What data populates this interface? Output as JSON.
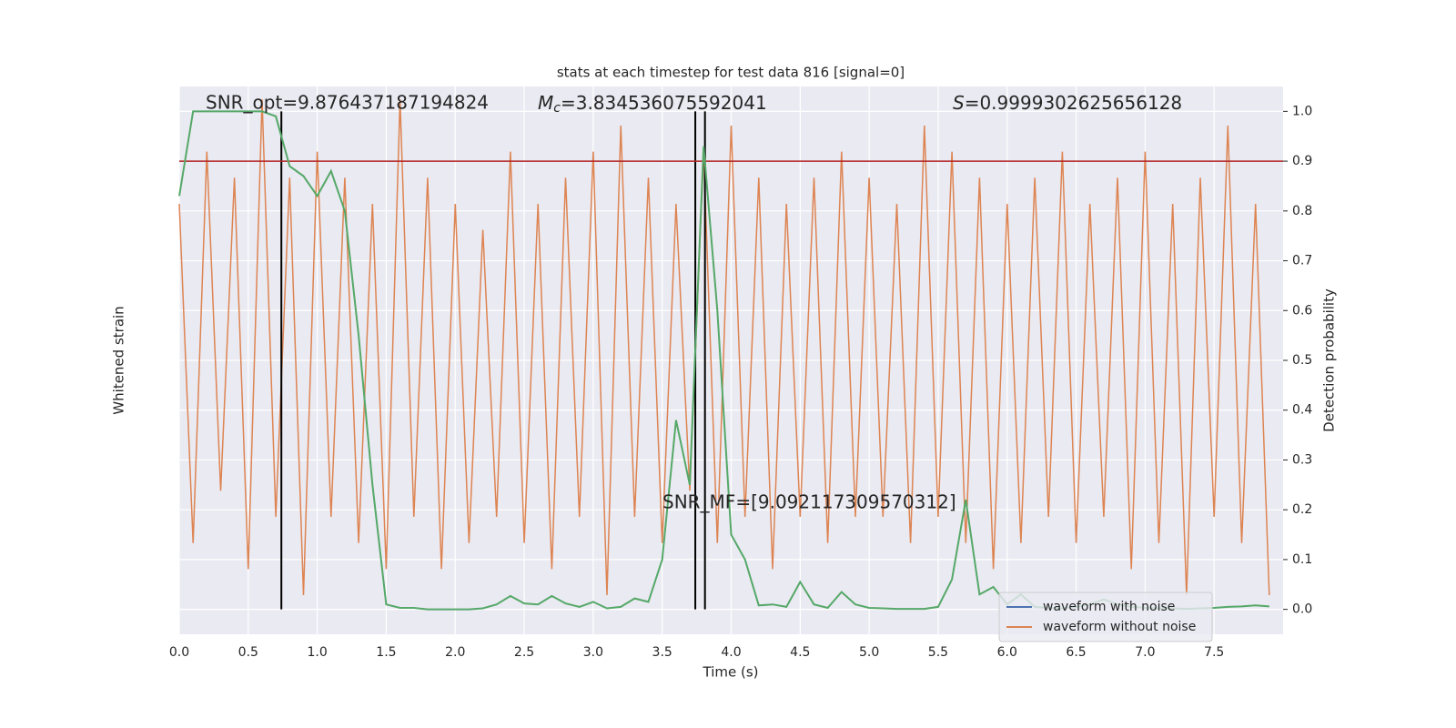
{
  "chart_data": {
    "type": "line",
    "title": "stats at each timestep for test data 816 [signal=0]",
    "xlabel": "Time (s)",
    "ylabel": "Whitened strain",
    "y2label": "Detection probability",
    "xlim": [
      0,
      8
    ],
    "xticks": [
      {
        "value": 0,
        "label": "0.0"
      },
      0.5,
      {
        "value": 1,
        "label": "1.0"
      },
      1.5,
      {
        "value": 2,
        "label": "2.0"
      },
      2.5,
      {
        "value": 3,
        "label": "3.0"
      },
      3.5,
      {
        "value": 4,
        "label": "4.0"
      },
      4.5,
      {
        "value": 5,
        "label": "5.0"
      },
      5.5,
      {
        "value": 6,
        "label": "6.0"
      },
      6.5,
      {
        "value": 7,
        "label": "7.0"
      },
      7.5
    ],
    "ylim": [
      -1.05,
      1.05
    ],
    "y2lim": [
      -0.05,
      1.05
    ],
    "y2ticks": [
      {
        "value": 0,
        "label": "0.0"
      },
      0.1,
      0.2,
      0.3,
      0.4,
      0.5,
      0.6,
      0.7,
      0.8,
      0.9,
      {
        "value": 1,
        "label": "1.0"
      }
    ],
    "grid": true,
    "legend": "lower right",
    "x": [
      0,
      0.1,
      0.2,
      0.3,
      0.4,
      0.5,
      0.6,
      0.7,
      0.8,
      0.9,
      1,
      1.1,
      1.2,
      1.3,
      1.4,
      1.5,
      1.6,
      1.7,
      1.8,
      1.9,
      2,
      2.1,
      2.2,
      2.3,
      2.4,
      2.5,
      2.6,
      2.7,
      2.8,
      2.9,
      3,
      3.1,
      3.2,
      3.3,
      3.4,
      3.5,
      3.6,
      3.7,
      3.8,
      3.9,
      4,
      4.1,
      4.2,
      4.3,
      4.4,
      4.5,
      4.6,
      4.7,
      4.8,
      4.9,
      5,
      5.1,
      5.2,
      5.3,
      5.4,
      5.5,
      5.6,
      5.7,
      5.8,
      5.9,
      6,
      6.1,
      6.2,
      6.3,
      6.4,
      6.5,
      6.6,
      6.7,
      6.8,
      6.9,
      7,
      7.1,
      7.2,
      7.3,
      7.4,
      7.5,
      7.6,
      7.7,
      7.8,
      7.9
    ],
    "series": [
      {
        "name": "waveform with noise",
        "color": "#4c72b0"
      },
      {
        "name": "waveform without noise",
        "color": "#dd8452",
        "values": [
          0.6,
          -0.7,
          0.8,
          -0.5,
          0.7,
          -0.8,
          1.0,
          -0.6,
          0.7,
          -0.9,
          0.8,
          -0.6,
          0.7,
          -0.7,
          0.6,
          -0.8,
          1.0,
          -0.6,
          0.7,
          -0.8,
          0.6,
          -0.7,
          0.5,
          -0.6,
          0.8,
          -0.7,
          0.6,
          -0.8,
          0.7,
          -0.6,
          0.8,
          -0.9,
          0.9,
          -0.6,
          0.7,
          -0.7,
          0.6,
          -0.5,
          0.8,
          -0.7,
          0.9,
          -0.6,
          0.7,
          -0.8,
          0.6,
          -0.6,
          0.7,
          -0.7,
          0.8,
          -0.6,
          0.7,
          -0.6,
          0.6,
          -0.7,
          0.9,
          -0.6,
          0.8,
          -0.7,
          0.7,
          -0.8,
          0.6,
          -0.7,
          0.7,
          -0.6,
          0.8,
          -0.7,
          0.6,
          -0.6,
          0.7,
          -0.8,
          0.8,
          -0.7,
          0.6,
          -0.9,
          0.7,
          -0.6,
          0.9,
          -0.7,
          0.6,
          -0.9
        ]
      },
      {
        "name": "Detection probability",
        "color": "#55a868",
        "axis": "y2",
        "values": [
          0.83,
          1.0,
          1.0,
          1.0,
          1.0,
          1.0,
          1.0,
          0.99,
          0.89,
          0.87,
          0.83,
          0.88,
          0.8,
          0.55,
          0.25,
          0.01,
          0.003,
          0.003,
          0,
          0,
          0,
          0,
          0.002,
          0.01,
          0.027,
          0.012,
          0.01,
          0.027,
          0.012,
          0.005,
          0.015,
          0.002,
          0.005,
          0.022,
          0.015,
          0.1,
          0.38,
          0.25,
          0.93,
          0.6,
          0.15,
          0.1,
          0.008,
          0.01,
          0.005,
          0.055,
          0.01,
          0.003,
          0.035,
          0.01,
          0.003,
          0.002,
          0.001,
          0.001,
          0.001,
          0.005,
          0.06,
          0.22,
          0.03,
          0.045,
          0.01,
          0.03,
          0.005,
          0.003,
          0.002,
          0.005,
          0.01,
          0.02,
          0.01,
          0.005,
          0.003,
          0.002,
          0.002,
          0.001,
          0.002,
          0.003,
          0.005,
          0.006,
          0.008,
          0.006
        ]
      }
    ],
    "threshold": {
      "value": 0.9,
      "color": "#b22222"
    },
    "vlines": [
      0.74,
      3.74,
      3.81
    ],
    "annotations": {
      "snr_opt": "SNR_opt=9.876437187194824",
      "mc": {
        "symbol": "M",
        "subscript": "c",
        "text": "=3.834536075592041"
      },
      "s": {
        "symbol": "S",
        "text": "=0.9999302625656128"
      },
      "snr_mf": "SNR_MF=[9.092117309570312]"
    }
  }
}
